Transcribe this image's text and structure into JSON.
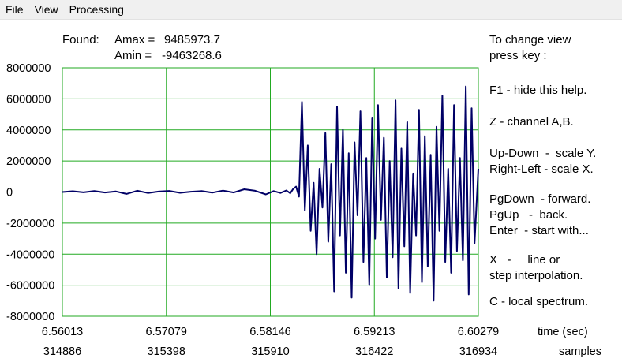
{
  "menu": {
    "file": "File",
    "view": "View",
    "processing": "Processing"
  },
  "found": {
    "label": "Found:",
    "amax_label": "Amax =",
    "amax_value": "9485973.7",
    "amin_label": "Amin =",
    "amin_value": "-9463268.6"
  },
  "help": {
    "title_line1": "To change view",
    "title_line2": "press key :",
    "f1": "F1 - hide this help.",
    "z": "Z - channel A,B.",
    "updown": "Up-Down  -  scale Y.",
    "rightleft": "Right-Left - scale X.",
    "pgdown": "PgDown  - forward.",
    "pgup": "PgUp   -  back.",
    "enter": "Enter  - start with...",
    "x_line1": "X   -     line or",
    "x_line2": "step interpolation.",
    "c": "C - local spectrum."
  },
  "axis_units": {
    "time": "time (sec)",
    "samples": "samples"
  },
  "colors": {
    "grid": "#22aa22",
    "signal": "#000066",
    "menubar": "#f0f0f0"
  },
  "chart_data": {
    "type": "line",
    "title": "",
    "xlabel": "time (sec)",
    "ylabel": "",
    "ylim": [
      -8000000,
      8000000
    ],
    "xlim": [
      6.56013,
      6.60279
    ],
    "grid": true,
    "y_ticks": [
      "8000000",
      "6000000",
      "4000000",
      "2000000",
      "0",
      "-2000000",
      "-4000000",
      "-6000000",
      "-8000000"
    ],
    "x_ticks": [
      "6.56013",
      "6.57079",
      "6.58146",
      "6.59213",
      "6.60279"
    ],
    "sample_ticks": [
      "314886",
      "315398",
      "315910",
      "316422",
      "316934"
    ],
    "series": [
      {
        "x": [
          6.56013,
          6.5612,
          6.5623,
          6.5634,
          6.5645,
          6.5656,
          6.5667,
          6.5678,
          6.5689,
          6.57,
          6.5711,
          6.5722,
          6.5733,
          6.5744,
          6.5755,
          6.5766,
          6.5777,
          6.5788,
          6.5799,
          6.581,
          6.5818,
          6.5825,
          6.5831,
          6.5835,
          6.5838,
          6.5841,
          6.5844,
          6.5847,
          6.585,
          6.5853,
          6.5856,
          6.5859,
          6.5862,
          6.5865,
          6.5868,
          6.5871,
          6.5874,
          6.5877,
          6.588,
          6.5883,
          6.5886,
          6.5889,
          6.5892,
          6.5895,
          6.5898,
          6.5901,
          6.5904,
          6.5907,
          6.591,
          6.5913,
          6.5916,
          6.5919,
          6.5922,
          6.5925,
          6.5928,
          6.5931,
          6.5934,
          6.5937,
          6.594,
          6.5943,
          6.5946,
          6.5949,
          6.5952,
          6.5955,
          6.5958,
          6.5961,
          6.5964,
          6.5967,
          6.597,
          6.5973,
          6.5976,
          6.5979,
          6.5982,
          6.5985,
          6.5988,
          6.5991,
          6.5994,
          6.5997,
          6.6,
          6.6003,
          6.6006,
          6.6009,
          6.6012,
          6.6015,
          6.6018,
          6.6021,
          6.6024,
          6.60279
        ],
        "values": [
          0,
          50000,
          -20000,
          60000,
          -30000,
          40000,
          -120000,
          80000,
          -60000,
          30000,
          70000,
          -50000,
          20000,
          60000,
          -40000,
          90000,
          -30000,
          180000,
          80000,
          -150000,
          60000,
          -60000,
          100000,
          -80000,
          200000,
          350000,
          -300000,
          5800000,
          -1200000,
          3000000,
          -2500000,
          600000,
          -4000000,
          1500000,
          -1000000,
          3800000,
          -3200000,
          1800000,
          -6400000,
          5500000,
          -2800000,
          4000000,
          -5200000,
          2500000,
          -6800000,
          3200000,
          -1500000,
          5200000,
          -4500000,
          2200000,
          -6000000,
          4800000,
          -3000000,
          5600000,
          -1800000,
          3500000,
          -5500000,
          2000000,
          -4200000,
          5900000,
          -6200000,
          2800000,
          -3500000,
          4500000,
          -6500000,
          1200000,
          -2800000,
          5300000,
          -5800000,
          3600000,
          -4800000,
          2400000,
          -7000000,
          4200000,
          -2500000,
          6200000,
          -4500000,
          1500000,
          -5200000,
          5600000,
          -3800000,
          2200000,
          -4400000,
          6800000,
          -6600000,
          5400000,
          -3300000,
          1500000
        ]
      }
    ]
  }
}
